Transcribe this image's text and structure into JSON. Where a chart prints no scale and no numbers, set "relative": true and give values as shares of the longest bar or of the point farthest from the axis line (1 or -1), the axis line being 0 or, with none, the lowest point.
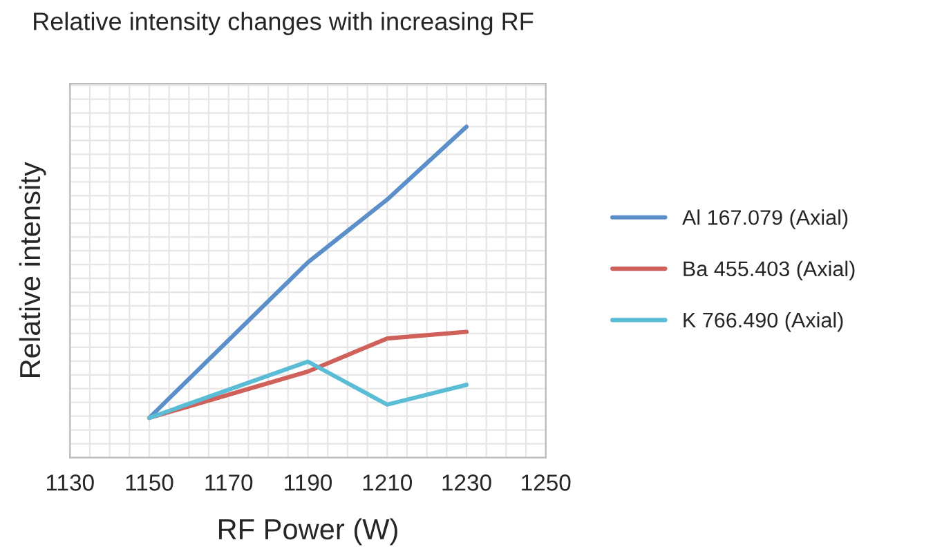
{
  "chart_data": {
    "type": "line",
    "title": "Relative intensity changes with increasing RF",
    "xlabel": "RF Power (W)",
    "ylabel": "Relative intensity",
    "relative": true,
    "x": [
      1150,
      1190,
      1210,
      1230
    ],
    "xlim": [
      1130,
      1250
    ],
    "xticks": [
      1130,
      1150,
      1170,
      1190,
      1210,
      1230,
      1250
    ],
    "series": [
      {
        "name": "Al 167.079 (Axial)",
        "color": "#5b8fc9",
        "values": [
          0.12,
          0.59,
          0.78,
          1
        ]
      },
      {
        "name": "Ba 455.403 (Axial)",
        "color": "#d0605a",
        "values": [
          0.12,
          0.26,
          0.36,
          0.38
        ]
      },
      {
        "name": "K 766.490 (Axial)",
        "color": "#5bbcd6",
        "values": [
          0.12,
          0.29,
          0.16,
          0.22
        ]
      }
    ],
    "grid": true,
    "legend": "right",
    "marker": "none",
    "line_style": "solid"
  }
}
